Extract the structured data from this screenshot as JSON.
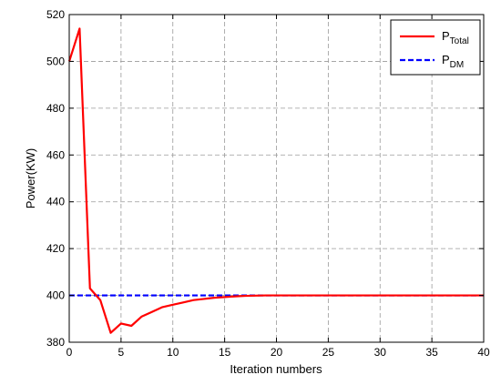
{
  "chart_data": {
    "type": "line",
    "xlabel": "Iteration numbers",
    "ylabel": "Power(KW)",
    "xlim": [
      0,
      40
    ],
    "ylim": [
      380,
      520
    ],
    "x_ticks": [
      0,
      5,
      10,
      15,
      20,
      25,
      30,
      35,
      40
    ],
    "y_ticks": [
      380,
      400,
      420,
      440,
      460,
      480,
      500,
      520
    ],
    "grid": true,
    "legend_position": "top-right",
    "series": [
      {
        "name": "P_Total",
        "legend_main": "P",
        "legend_sub": "Total",
        "color": "#ff0000",
        "style": "solid",
        "x": [
          0,
          1,
          2,
          3,
          4,
          5,
          6,
          7,
          8,
          9,
          10,
          11,
          12,
          13,
          14,
          15,
          16,
          17,
          18,
          19,
          20,
          25,
          30,
          35,
          40
        ],
        "y": [
          500,
          514,
          403,
          398,
          384,
          388,
          387,
          391,
          393,
          395,
          396,
          397,
          398,
          398.5,
          399,
          399.3,
          399.6,
          399.8,
          399.9,
          400,
          400,
          400,
          400,
          400,
          400
        ]
      },
      {
        "name": "P_DM",
        "legend_main": "P",
        "legend_sub": "DM",
        "color": "#0000ff",
        "style": "dashed",
        "x": [
          0,
          40
        ],
        "y": [
          400,
          400
        ]
      }
    ]
  }
}
